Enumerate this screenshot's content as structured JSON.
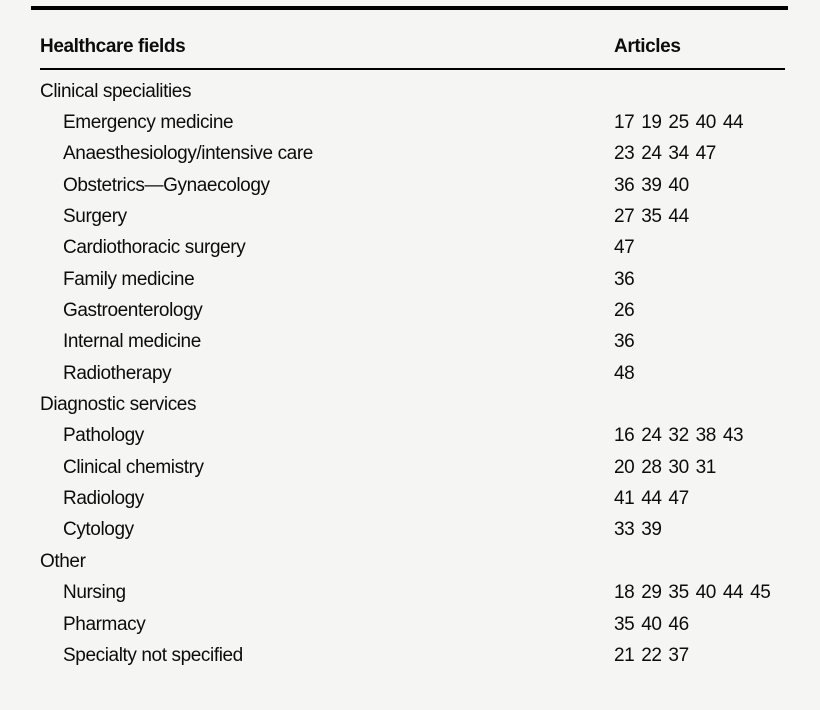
{
  "page": {
    "background": "#f5f5f4",
    "text_color": "#0c0c0c",
    "rule_color": "#000000"
  },
  "table": {
    "columns": {
      "field": "Healthcare fields",
      "articles": "Articles"
    },
    "sections": [
      {
        "label": "Clinical specialities",
        "rows": [
          {
            "field": "Emergency medicine",
            "articles": [
              17,
              19,
              25,
              40,
              44
            ]
          },
          {
            "field": "Anaesthesiology/intensive care",
            "articles": [
              23,
              24,
              34,
              47
            ]
          },
          {
            "field": "Obstetrics—Gynaecology",
            "articles": [
              36,
              39,
              40
            ]
          },
          {
            "field": "Surgery",
            "articles": [
              27,
              35,
              44
            ]
          },
          {
            "field": "Cardiothoracic surgery",
            "articles": [
              47
            ]
          },
          {
            "field": "Family medicine",
            "articles": [
              36
            ]
          },
          {
            "field": "Gastroenterology",
            "articles": [
              26
            ]
          },
          {
            "field": "Internal medicine",
            "articles": [
              36
            ]
          },
          {
            "field": "Radiotherapy",
            "articles": [
              48
            ]
          }
        ]
      },
      {
        "label": "Diagnostic services",
        "rows": [
          {
            "field": "Pathology",
            "articles": [
              16,
              24,
              32,
              38,
              43
            ]
          },
          {
            "field": "Clinical chemistry",
            "articles": [
              20,
              28,
              30,
              31
            ]
          },
          {
            "field": "Radiology",
            "articles": [
              41,
              44,
              47
            ]
          },
          {
            "field": "Cytology",
            "articles": [
              33,
              39
            ]
          }
        ]
      },
      {
        "label": "Other",
        "rows": [
          {
            "field": "Nursing",
            "articles": [
              18,
              29,
              35,
              40,
              44,
              45
            ]
          },
          {
            "field": "Pharmacy",
            "articles": [
              35,
              40,
              46
            ]
          },
          {
            "field": "Specialty not specified",
            "articles": [
              21,
              22,
              37
            ]
          }
        ]
      }
    ]
  }
}
